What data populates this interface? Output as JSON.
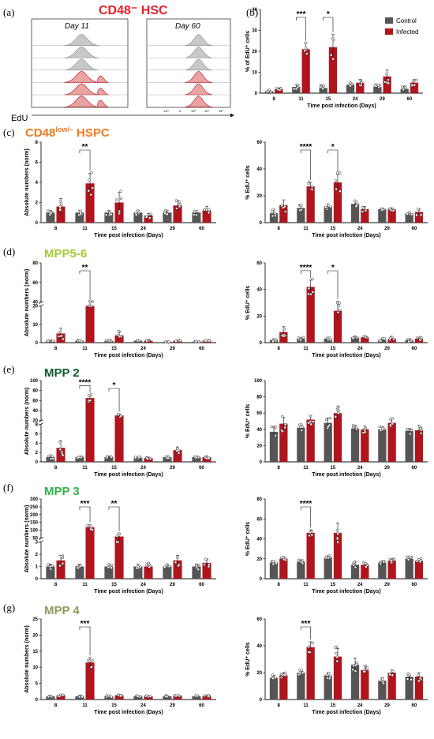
{
  "colors": {
    "control": "#555555",
    "infected": "#b0151d",
    "infected_light": "#e9a3a3",
    "control_light": "#c8c8c8"
  },
  "panel_letters": [
    "(a)",
    "(b)",
    "(c)",
    "(d)",
    "(e)",
    "(f)",
    "(g)"
  ],
  "legend": {
    "control": "Control",
    "infected": "Infected"
  },
  "flow": {
    "title": "CD48⁻ HSC",
    "day_left": "Day 11",
    "day_right": "Day 60",
    "axis_label": "EdU",
    "ticks": [
      "-10³",
      "0",
      "10³",
      "10⁴",
      "10⁵"
    ],
    "left_fills": [
      "control",
      "control",
      "control",
      "infected",
      "infected",
      "infected"
    ],
    "right_fills": [
      "control",
      "control",
      "control",
      "infected",
      "infected",
      "infected"
    ]
  },
  "row_titles": [
    {
      "id": "c",
      "parts": [
        "CD48",
        "low/–",
        " HSPC"
      ],
      "color": "#f07a1f"
    },
    {
      "id": "d",
      "parts": [
        "MPP5-6"
      ],
      "color": "#a6c837"
    },
    {
      "id": "e",
      "parts": [
        "MPP 2"
      ],
      "color": "#0d5c2a"
    },
    {
      "id": "f",
      "parts": [
        "MPP 3"
      ],
      "color": "#33b04a"
    },
    {
      "id": "g",
      "parts": [
        "MPP 4"
      ],
      "color": "#8e9a5c"
    }
  ],
  "chart_data": [
    {
      "id": "b",
      "type": "bar",
      "ylabel": "% of EdU⁺ cells",
      "xlabel": "Time post infection (Days)",
      "categories": [
        "8",
        "11",
        "15",
        "24",
        "29",
        "60"
      ],
      "yticks": [
        "0",
        "10",
        "20",
        "30",
        "40"
      ],
      "ylim": [
        0,
        40
      ],
      "series": [
        {
          "name": "Control",
          "values": [
            1,
            3,
            2.5,
            4,
            3,
            2
          ],
          "err": [
            0.5,
            1,
            1,
            1,
            1,
            1
          ]
        },
        {
          "name": "Infected",
          "values": [
            2,
            21,
            22,
            5,
            8,
            5
          ],
          "err": [
            0.5,
            3,
            6,
            1.5,
            3,
            1.5
          ]
        }
      ],
      "significance": [
        {
          "category": "11",
          "label": "***"
        },
        {
          "category": "15",
          "label": "*"
        }
      ]
    },
    {
      "id": "c1",
      "type": "bar",
      "ylabel": "Absolute numbers (norm)",
      "xlabel": "Time post infection (Days)",
      "categories": [
        "8",
        "11",
        "15",
        "24",
        "29",
        "60"
      ],
      "yticks": [
        "0",
        "2",
        "4",
        "6",
        "8"
      ],
      "ylim": [
        0,
        8
      ],
      "series": [
        {
          "name": "Control",
          "values": [
            1,
            1,
            1,
            1,
            1,
            1
          ],
          "err": [
            0.2,
            0.2,
            0.2,
            0.2,
            0.2,
            0.2
          ]
        },
        {
          "name": "Infected",
          "values": [
            1.6,
            3.9,
            2,
            0.7,
            1.7,
            1.2
          ],
          "err": [
            0.8,
            1,
            1,
            0.2,
            0.5,
            0.4
          ]
        }
      ],
      "significance": [
        {
          "category": "11",
          "label": "**"
        }
      ]
    },
    {
      "id": "c2",
      "type": "bar",
      "ylabel": "% EdU⁺ cells",
      "xlabel": "Time post infection (Days)",
      "categories": [
        "8",
        "11",
        "15",
        "24",
        "29",
        "60"
      ],
      "yticks": [
        "0",
        "20",
        "40",
        "60"
      ],
      "ylim": [
        0,
        60
      ],
      "series": [
        {
          "name": "Control",
          "values": [
            7,
            11,
            12,
            14,
            10,
            7
          ],
          "err": [
            3,
            2,
            2,
            2,
            1,
            1
          ]
        },
        {
          "name": "Infected",
          "values": [
            13,
            27,
            30,
            10,
            10,
            8
          ],
          "err": [
            4,
            3,
            6,
            2,
            1,
            2
          ]
        }
      ],
      "significance": [
        {
          "category": "11",
          "label": "****"
        },
        {
          "category": "15",
          "label": "*"
        }
      ]
    },
    {
      "id": "d1",
      "type": "bar",
      "ylabel": "Absolute numbers (norm)",
      "xlabel": "Time post infection (Days)",
      "categories": [
        "8",
        "11",
        "15",
        "24",
        "29",
        "60"
      ],
      "yticks": [
        "0",
        "10",
        "20",
        "40",
        "60",
        "80"
      ],
      "ylim": [
        0,
        80
      ],
      "ybreak": [
        20,
        40
      ],
      "series": [
        {
          "name": "Control",
          "values": [
            1,
            1,
            1,
            1,
            0.5,
            0.5
          ],
          "err": [
            0.3,
            0.3,
            0.3,
            0.2,
            0.2,
            0.2
          ]
        },
        {
          "name": "Infected",
          "values": [
            5,
            34,
            4,
            1,
            1,
            1
          ],
          "err": [
            3,
            6,
            2,
            0.3,
            0.3,
            0.3
          ]
        }
      ],
      "significance": [
        {
          "category": "11",
          "label": "**"
        }
      ]
    },
    {
      "id": "d2",
      "type": "bar",
      "ylabel": "% EdU⁺ cells",
      "xlabel": "Time post infection (Days)",
      "categories": [
        "8",
        "11",
        "15",
        "24",
        "29",
        "60"
      ],
      "yticks": [
        "0",
        "20",
        "40",
        "60"
      ],
      "ylim": [
        0,
        60
      ],
      "series": [
        {
          "name": "Control",
          "values": [
            2,
            3,
            3,
            4,
            2,
            2
          ],
          "err": [
            1,
            1,
            1,
            1,
            1,
            1
          ]
        },
        {
          "name": "Infected",
          "values": [
            8,
            42,
            24,
            4,
            3,
            3
          ],
          "err": [
            4,
            5,
            7,
            1,
            1,
            1
          ]
        }
      ],
      "significance": [
        {
          "category": "11",
          "label": "****"
        },
        {
          "category": "15",
          "label": "*"
        }
      ]
    },
    {
      "id": "e1",
      "type": "bar",
      "ylabel": "Absolute numbers (norm)",
      "xlabel": "Time post infection (Days)",
      "categories": [
        "8",
        "11",
        "15",
        "24",
        "29",
        "60"
      ],
      "yticks": [
        "0",
        "2",
        "4",
        "6",
        "8",
        "20",
        "40",
        "60",
        "80",
        "100"
      ],
      "ylim": [
        0,
        100
      ],
      "ybreak": [
        8,
        20
      ],
      "series": [
        {
          "name": "Control",
          "values": [
            1,
            1,
            1,
            0.8,
            1,
            1
          ],
          "err": [
            0.3,
            0.2,
            0.2,
            0.2,
            0.2,
            0.2
          ]
        },
        {
          "name": "Infected",
          "values": [
            3,
            65,
            30,
            0.8,
            2.5,
            1
          ],
          "err": [
            1.5,
            6,
            3,
            0.2,
            0.7,
            0.3
          ]
        }
      ],
      "significance": [
        {
          "category": "11",
          "label": "****"
        },
        {
          "category": "15",
          "label": "*"
        }
      ]
    },
    {
      "id": "e2",
      "type": "bar",
      "ylabel": "% EdU⁺ cells",
      "xlabel": "Time post infection (Days)",
      "categories": [
        "8",
        "11",
        "15",
        "24",
        "29",
        "60"
      ],
      "yticks": [
        "0",
        "20",
        "40",
        "60",
        "80",
        "100"
      ],
      "ylim": [
        0,
        100
      ],
      "series": [
        {
          "name": "Control",
          "values": [
            37,
            42,
            48,
            41,
            40,
            38
          ],
          "err": [
            6,
            4,
            6,
            4,
            3,
            3
          ]
        },
        {
          "name": "Infected",
          "values": [
            47,
            52,
            60,
            40,
            48,
            39
          ],
          "err": [
            8,
            5,
            8,
            4,
            5,
            6
          ]
        }
      ],
      "significance": []
    },
    {
      "id": "f1",
      "type": "bar",
      "ylabel": "Absolute numbers (norm)",
      "xlabel": "Time post infection (Days)",
      "categories": [
        "8",
        "11",
        "15",
        "24",
        "29",
        "60"
      ],
      "yticks": [
        "0",
        "1",
        "2",
        "3",
        "50",
        "100",
        "150",
        "200",
        "250",
        "300"
      ],
      "ylim": [
        0,
        300
      ],
      "ybreak": [
        3,
        50
      ],
      "series": [
        {
          "name": "Control",
          "values": [
            1,
            1,
            1,
            1,
            1,
            1
          ],
          "err": [
            0.2,
            0.2,
            0.2,
            0.2,
            0.2,
            0.2
          ]
        },
        {
          "name": "Infected",
          "values": [
            1.5,
            120,
            60,
            1,
            1.5,
            1.3
          ],
          "err": [
            0.4,
            15,
            20,
            0.3,
            0.4,
            0.3
          ]
        }
      ],
      "significance": [
        {
          "category": "11",
          "label": "***"
        },
        {
          "category": "15",
          "label": "**"
        }
      ]
    },
    {
      "id": "f2",
      "type": "bar",
      "ylabel": "% EdU⁺ cells",
      "xlabel": "Time post infection (Days)",
      "categories": [
        "8",
        "11",
        "15",
        "24",
        "29",
        "60"
      ],
      "yticks": [
        "0",
        "20",
        "40",
        "60",
        "80"
      ],
      "ylim": [
        0,
        80
      ],
      "series": [
        {
          "name": "Control",
          "values": [
            16,
            17,
            21,
            14,
            16,
            20
          ],
          "err": [
            2,
            2,
            2,
            3,
            2,
            2
          ]
        },
        {
          "name": "Infected",
          "values": [
            20,
            46,
            46,
            14,
            18,
            18
          ],
          "err": [
            2,
            3,
            10,
            2,
            2,
            2
          ]
        }
      ],
      "significance": [
        {
          "category": "11",
          "label": "****"
        }
      ]
    },
    {
      "id": "g1",
      "type": "bar",
      "ylabel": "Absolute numbers (norm)",
      "xlabel": "Time post infection (Days)",
      "categories": [
        "8",
        "11",
        "15",
        "24",
        "29",
        "60"
      ],
      "yticks": [
        "0",
        "5",
        "10",
        "15",
        "20",
        "25"
      ],
      "ylim": [
        0,
        25
      ],
      "series": [
        {
          "name": "Control",
          "values": [
            1,
            1,
            1,
            1,
            1,
            1
          ],
          "err": [
            0.2,
            0.2,
            0.2,
            0.2,
            0.2,
            0.2
          ]
        },
        {
          "name": "Infected",
          "values": [
            1.3,
            11.5,
            1.3,
            1,
            1.2,
            1.1
          ],
          "err": [
            0.3,
            1.5,
            0.3,
            0.2,
            0.2,
            0.2
          ]
        }
      ],
      "significance": [
        {
          "category": "11",
          "label": "***"
        }
      ]
    },
    {
      "id": "g2",
      "type": "bar",
      "ylabel": "% EdU⁺ cells",
      "xlabel": "Time post infection (Days)",
      "categories": [
        "8",
        "11",
        "15",
        "24",
        "29",
        "60"
      ],
      "yticks": [
        "0",
        "20",
        "40",
        "60"
      ],
      "ylim": [
        0,
        60
      ],
      "series": [
        {
          "name": "Control",
          "values": [
            16,
            20,
            18,
            26,
            14,
            17
          ],
          "err": [
            2,
            2,
            2,
            5,
            2,
            2
          ]
        },
        {
          "name": "Infected",
          "values": [
            18,
            39,
            32,
            22,
            20,
            17
          ],
          "err": [
            2,
            4,
            6,
            3,
            2,
            3
          ]
        }
      ],
      "significance": [
        {
          "category": "11",
          "label": "***"
        }
      ]
    }
  ]
}
